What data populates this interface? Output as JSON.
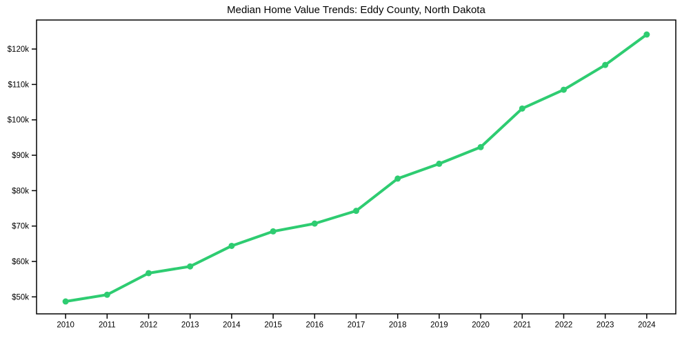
{
  "chart_data": {
    "type": "line",
    "title": "Median Home Value Trends: Eddy County, North Dakota",
    "xlabel": "",
    "ylabel": "",
    "x": [
      2010,
      2011,
      2012,
      2013,
      2014,
      2015,
      2016,
      2017,
      2018,
      2019,
      2020,
      2021,
      2022,
      2023,
      2024
    ],
    "x_tick_labels": [
      "2010",
      "2011",
      "2012",
      "2013",
      "2014",
      "2015",
      "2016",
      "2017",
      "2018",
      "2019",
      "2020",
      "2021",
      "2022",
      "2023",
      "2024"
    ],
    "series": [
      {
        "name": "Median home value",
        "values": [
          48700,
          50600,
          56700,
          58600,
          64400,
          68500,
          70700,
          74300,
          83400,
          87600,
          92300,
          103200,
          108500,
          115500,
          124100
        ]
      }
    ],
    "y_ticks": [
      {
        "value": 50000,
        "label": "$50k"
      },
      {
        "value": 60000,
        "label": "$60k"
      },
      {
        "value": 70000,
        "label": "$70k"
      },
      {
        "value": 80000,
        "label": "$80k"
      },
      {
        "value": 90000,
        "label": "$90k"
      },
      {
        "value": 100000,
        "label": "$100k"
      },
      {
        "value": 110000,
        "label": "$110k"
      },
      {
        "value": 120000,
        "label": "$120k"
      }
    ],
    "xlim": [
      2009.3,
      2024.7
    ],
    "ylim": [
      45200,
      128200
    ],
    "grid": false,
    "legend": false,
    "line_color": "#2ecc71",
    "marker": "circle",
    "background_color": "#ffffff",
    "axis_color": "#000000"
  }
}
